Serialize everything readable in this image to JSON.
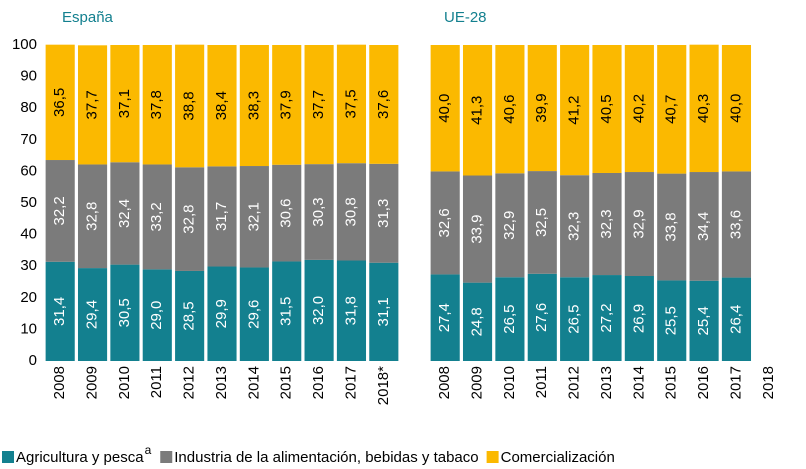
{
  "chart_data": [
    {
      "type": "bar",
      "stacked": true,
      "title": "España",
      "categories": [
        "2008",
        "2009",
        "2010",
        "2011",
        "2012",
        "2013",
        "2014",
        "2015",
        "2016",
        "2017",
        "2018*"
      ],
      "ylim": [
        0,
        100
      ],
      "yticks": [
        0,
        10,
        20,
        30,
        40,
        50,
        60,
        70,
        80,
        90,
        100
      ],
      "series": [
        {
          "name": "Agricultura y pesca",
          "name_superscript": "a",
          "color": "#13808f",
          "values": [
            31.4,
            29.4,
            30.5,
            29.0,
            28.5,
            29.9,
            29.6,
            31.5,
            32.0,
            31.8,
            31.1
          ],
          "value_labels": [
            "31,4",
            "29,4",
            "30,5",
            "29,0",
            "28,5",
            "29,9",
            "29,6",
            "31,5",
            "32,0",
            "31,8",
            "31,1"
          ]
        },
        {
          "name": "Industria de la alimentación, bebidas y tabaco",
          "color": "#7b7b7b",
          "values": [
            32.2,
            32.8,
            32.4,
            33.2,
            32.8,
            31.7,
            32.1,
            30.6,
            30.3,
            30.8,
            31.3
          ],
          "value_labels": [
            "32,2",
            "32,8",
            "32,4",
            "33,2",
            "32,8",
            "31,7",
            "32,1",
            "30,6",
            "30,3",
            "30,8",
            "31,3"
          ]
        },
        {
          "name": "Comercialización",
          "color": "#fbb900",
          "values": [
            36.5,
            37.7,
            37.1,
            37.8,
            38.8,
            38.4,
            38.3,
            37.9,
            37.7,
            37.5,
            37.6
          ],
          "value_labels": [
            "36,5",
            "37,7",
            "37,1",
            "37,8",
            "38,8",
            "38,4",
            "38,3",
            "37,9",
            "37,7",
            "37,5",
            "37,6"
          ]
        }
      ]
    },
    {
      "type": "bar",
      "stacked": true,
      "title": "UE-28",
      "categories": [
        "2008",
        "2009",
        "2010",
        "2011",
        "2012",
        "2013",
        "2014",
        "2015",
        "2016",
        "2017",
        "2018"
      ],
      "ylim": [
        0,
        100
      ],
      "series": [
        {
          "color": "#13808f",
          "values": [
            27.4,
            24.8,
            26.5,
            27.6,
            26.5,
            27.2,
            26.9,
            25.5,
            25.4,
            26.4,
            null
          ],
          "value_labels": [
            "27,4",
            "24,8",
            "26,5",
            "27,6",
            "26,5",
            "27,2",
            "26,9",
            "25,5",
            "25,4",
            "26,4",
            null
          ]
        },
        {
          "color": "#7b7b7b",
          "values": [
            32.6,
            33.9,
            32.9,
            32.5,
            32.3,
            32.3,
            32.9,
            33.8,
            34.4,
            33.6,
            null
          ],
          "value_labels": [
            "32,6",
            "33,9",
            "32,9",
            "32,5",
            "32,3",
            "32,3",
            "32,9",
            "33,8",
            "34,4",
            "33,6",
            null
          ]
        },
        {
          "color": "#fbb900",
          "values": [
            40.0,
            41.3,
            40.6,
            39.9,
            41.2,
            40.5,
            40.2,
            40.7,
            40.3,
            40.0,
            null
          ],
          "value_labels": [
            "40,0",
            "41,3",
            "40,6",
            "39,9",
            "41,2",
            "40,5",
            "40,2",
            "40,7",
            "40,3",
            "40,0",
            null
          ]
        }
      ]
    }
  ]
}
